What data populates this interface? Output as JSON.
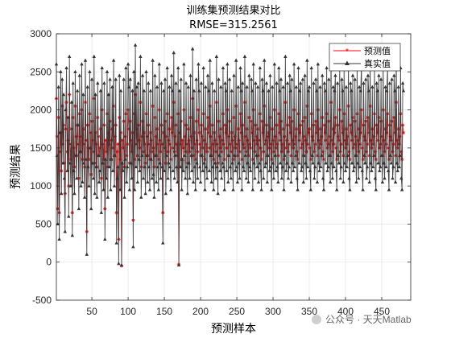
{
  "chart_data": {
    "type": "line",
    "title": "训练集预测结果对比",
    "subtitle": "RMSE=315.2561",
    "xlabel": "预测样本",
    "ylabel": "预测结果",
    "xlim": [
      1,
      490
    ],
    "ylim": [
      -500,
      3000
    ],
    "xticks": [
      50,
      100,
      150,
      200,
      250,
      300,
      350,
      400,
      450
    ],
    "yticks": [
      -500,
      0,
      500,
      1000,
      1500,
      2000,
      2500,
      3000
    ],
    "grid": true,
    "legend_position": "top-right",
    "series": [
      {
        "name": "预测值",
        "color": "#ff0000",
        "marker": "star",
        "x_start": 1,
        "values": [
          2150,
          1650,
          700,
          1900,
          650,
          1450,
          1700,
          1200,
          2050,
          1550,
          1800,
          1300,
          900,
          1750,
          2100,
          1450,
          1600,
          1000,
          2200,
          1550,
          1350,
          1750,
          650,
          1900,
          1500,
          1250,
          2050,
          1650,
          1400,
          1800,
          1550,
          1100,
          1950,
          1650,
          1450,
          2000,
          1350,
          1750,
          1550,
          1250,
          2100,
          1600,
          400,
          1800,
          1500,
          1350,
          1950,
          1700,
          1150,
          1850,
          1600,
          1450,
          2150,
          1300,
          1700,
          1550,
          1250,
          1900,
          1650,
          1400,
          1500,
          1750,
          1100,
          2000,
          1550,
          1350,
          1800,
          700,
          1600,
          1450,
          1950,
          1250,
          1700,
          1550,
          1850,
          1350,
          1600,
          1750,
          1500,
          2050,
          1400,
          1650,
          1800,
          650,
          1450,
          1550,
          300,
          1900,
          1350,
          1700,
          -50,
          1600,
          1500,
          1850,
          1250,
          1650,
          1950,
          1400,
          1550,
          2000,
          1750,
          1300,
          1850,
          1600,
          1450,
          1700,
          550,
          1950,
          1350,
          2200,
          1550,
          1750,
          1400,
          1800,
          1600,
          1500,
          2100,
          1250,
          1650,
          1850,
          1450,
          1700,
          1550,
          1300,
          1950,
          1650,
          1400,
          1800,
          1550,
          1350,
          1700,
          1600,
          1450,
          2050,
          1500,
          1250,
          1900,
          1650,
          1400,
          1750,
          1550,
          1350,
          2000,
          1600,
          1450,
          1800,
          1550,
          650,
          1700,
          1500,
          1850,
          1300,
          1650,
          1950,
          1450,
          1600,
          1750,
          1550,
          1350,
          1900,
          1700,
          1500,
          2100,
          1450,
          1650,
          1800,
          1550,
          1400,
          1950,
          -30,
          1700,
          1550,
          1850,
          1350,
          1600,
          1500,
          2000,
          1650,
          1450,
          1800,
          1550,
          1300,
          1750,
          1600,
          1450,
          1900,
          1650,
          1500,
          2150,
          1400,
          1700,
          1550,
          1350,
          1850,
          1600,
          1450,
          2000,
          1700,
          1550,
          1400,
          1800,
          1650,
          1500,
          1950,
          1600,
          1350,
          1750,
          1550,
          1450,
          1900,
          1700,
          1500,
          2050,
          1650,
          1400,
          1800,
          1550,
          1350,
          1700,
          1600,
          1450,
          2100,
          1550,
          1300,
          1850,
          1650,
          1500,
          1750,
          1450,
          1600,
          1950,
          1550,
          1350,
          1800,
          1700,
          1500,
          2000,
          1400,
          1650,
          1850,
          1550,
          1450,
          1700,
          1600,
          1350,
          1900,
          1650,
          1500,
          2050,
          1550,
          1400,
          1750,
          1600,
          1450,
          1950,
          1700,
          1350,
          1800,
          1550,
          1500,
          2100,
          1650,
          1450,
          1750,
          1600,
          1400,
          1900,
          1550,
          1500,
          1850,
          1700,
          1350,
          2000,
          1600,
          1450,
          1800,
          1650,
          1550,
          1750,
          1400,
          1600,
          1950,
          1500,
          1350,
          1850,
          1700,
          1450,
          2050,
          1550,
          1600,
          1800,
          1400,
          1650,
          1700,
          1500,
          1900,
          1550,
          1350,
          1750,
          1600,
          1450,
          2000,
          1650,
          1500,
          1800,
          1550,
          1400,
          1950,
          1700,
          1600,
          1850,
          1450,
          1550,
          1750,
          1350,
          1650,
          2100,
          1500,
          1600,
          1800,
          1450,
          1550,
          1900,
          1700,
          1400,
          1850,
          1600,
          1500,
          2000,
          1550,
          1650,
          1750,
          1450,
          1350,
          1950,
          1600,
          1700,
          1800,
          1500,
          1550,
          1850,
          1400,
          1650,
          1900,
          1600,
          1450,
          2050,
          1550,
          1700,
          1750,
          1500,
          1350,
          1950,
          1650,
          1600,
          1800,
          1450,
          1550,
          1850,
          1700,
          1400,
          2000,
          1600,
          1500,
          1750,
          1550,
          1650,
          1900,
          1450,
          1350,
          1800,
          1700,
          1600,
          1950,
          1500,
          1550,
          1850,
          1650,
          1400,
          2100,
          1600,
          1450,
          1750,
          1550,
          1700,
          1900,
          1500,
          1350,
          1800,
          1650,
          1600,
          2000,
          1450,
          1550,
          1850,
          1700,
          1400,
          1950,
          1600,
          1500,
          1750,
          1550,
          1650,
          2050,
          1450,
          1350,
          1800,
          1700,
          1600,
          1900,
          1500,
          1550,
          1850,
          1650,
          1400,
          1950,
          1600,
          1450,
          1750,
          1550,
          1700,
          2000,
          1500,
          1350,
          1800,
          1650,
          1600,
          1850,
          1450,
          1550,
          1900,
          1700,
          1400,
          2050,
          1600,
          1500,
          1750,
          1550,
          1650,
          1950,
          1450,
          1350,
          1800,
          1700,
          1600,
          1900,
          1500,
          1550,
          1850,
          1650,
          1400,
          2000,
          1600,
          1450,
          1750,
          1550,
          1700,
          1950,
          1500,
          1350,
          1800,
          1650,
          1600,
          1850,
          1450,
          1550,
          1900,
          1700,
          1400,
          2100,
          1600,
          1500,
          1750,
          1550,
          1650,
          1950,
          1450,
          1350,
          1800,
          1700
        ]
      },
      {
        "name": "真实值",
        "color": "#333333",
        "marker": "triangle",
        "x_start": 1,
        "values": [
          2600,
          1400,
          500,
          2300,
          300,
          1700,
          2500,
          900,
          2400,
          1300,
          2200,
          1100,
          400,
          2000,
          2550,
          1200,
          1900,
          600,
          2700,
          1300,
          1000,
          2100,
          350,
          2350,
          1200,
          900,
          2500,
          1400,
          1100,
          2250,
          1800,
          700,
          2450,
          1450,
          1000,
          2600,
          1050,
          2200,
          1300,
          850,
          2650,
          1350,
          100,
          2300,
          1250,
          1000,
          2500,
          1500,
          700,
          2400,
          1300,
          1100,
          2700,
          900,
          2200,
          1250,
          850,
          2350,
          1400,
          1050,
          1200,
          2250,
          650,
          2550,
          1300,
          950,
          2350,
          300,
          1350,
          1100,
          2500,
          850,
          2200,
          1250,
          2400,
          950,
          1350,
          2300,
          1200,
          2650,
          1000,
          1400,
          2400,
          250,
          1100,
          1250,
          -20,
          2450,
          950,
          2250,
          -40,
          1300,
          1200,
          2400,
          850,
          1350,
          2550,
          1050,
          1250,
          2600,
          2300,
          950,
          2400,
          1300,
          1100,
          2250,
          200,
          2500,
          950,
          2850,
          1250,
          2300,
          1050,
          2350,
          1350,
          1200,
          2700,
          850,
          1400,
          2450,
          1100,
          2250,
          1250,
          900,
          2500,
          1400,
          1050,
          2350,
          1250,
          950,
          2250,
          1350,
          1100,
          2650,
          1150,
          850,
          2450,
          1400,
          1050,
          2300,
          1250,
          950,
          2600,
          1300,
          1100,
          2350,
          1250,
          250,
          2250,
          1200,
          2400,
          900,
          1400,
          2550,
          1100,
          1300,
          2300,
          1250,
          950,
          2450,
          2250,
          1200,
          2750,
          1100,
          1400,
          2350,
          1250,
          1050,
          2550,
          -40,
          2250,
          1250,
          2400,
          950,
          1350,
          1200,
          2600,
          1400,
          1100,
          2350,
          1250,
          900,
          2300,
          1300,
          1100,
          2450,
          1400,
          1200,
          2800,
          1050,
          2250,
          1250,
          950,
          2400,
          1300,
          1100,
          2600,
          2250,
          1250,
          1050,
          2350,
          1400,
          1200,
          2550,
          1300,
          950,
          2300,
          1250,
          1100,
          2450,
          2250,
          1200,
          2650,
          1400,
          1050,
          2350,
          1250,
          950,
          2250,
          1300,
          1100,
          2700,
          1250,
          900,
          2400,
          1400,
          1200,
          2300,
          1100,
          1300,
          2550,
          1250,
          950,
          2350,
          2250,
          1200,
          2600,
          1050,
          1400,
          2400,
          1250,
          1100,
          2250,
          1300,
          950,
          2450,
          1400,
          1200,
          2650,
          1250,
          1050,
          2300,
          1300,
          1100,
          2550,
          2250,
          950,
          2350,
          1250,
          1200,
          2700,
          1400,
          1100,
          2300,
          1300,
          1050,
          2450,
          1250,
          1200,
          2400,
          2250,
          950,
          2600,
          1300,
          1100,
          2350,
          1400,
          1250,
          2300,
          1050,
          1300,
          2550,
          1200,
          950,
          2400,
          2250,
          1100,
          2650,
          1250,
          1300,
          2350,
          1050,
          1400,
          2250,
          1200,
          2450,
          1250,
          950,
          2300,
          1300,
          1100,
          2600,
          1400,
          1200,
          2350,
          1250,
          1050,
          2550,
          2250,
          1300,
          2400,
          1100,
          1250,
          2300,
          950,
          1400,
          2700,
          1200,
          1300,
          2350,
          1100,
          1250,
          2450,
          2250,
          1050,
          2400,
          1300,
          1200,
          2600,
          1250,
          1400,
          2300,
          1100,
          950,
          2550,
          1300,
          2250,
          2350,
          1200,
          1250,
          2400,
          1050,
          1400,
          2450,
          1300,
          1100,
          2650,
          1250,
          2250,
          2300,
          1200,
          950,
          2550,
          1400,
          1300,
          2350,
          1100,
          1250,
          2400,
          2250,
          1050,
          2600,
          1300,
          1200,
          2300,
          1250,
          1400,
          2450,
          1100,
          950,
          2350,
          2250,
          1300,
          2550,
          1200,
          1250,
          2400,
          1400,
          1050,
          2700,
          1300,
          1100,
          2300,
          1250,
          2250,
          2450,
          1200,
          950,
          2350,
          1400,
          1300,
          2600,
          1100,
          1250,
          2400,
          2250,
          1050,
          2550,
          1300,
          1200,
          2300,
          1250,
          1400,
          2650,
          1100,
          950,
          2350,
          2250,
          1300,
          2450,
          1200,
          1250,
          2400,
          1400,
          1050,
          2550,
          1300,
          1100,
          2300,
          1250,
          2250,
          2600,
          1200,
          950,
          2350,
          1400,
          1300,
          2400,
          1100,
          1250,
          2450,
          2250,
          1050,
          2650,
          1300,
          1200,
          2300,
          1250,
          1400,
          2550,
          1100,
          950,
          2350,
          2250,
          1300,
          2450,
          1200,
          1250,
          2400,
          1400,
          1050,
          2600,
          1300,
          1100,
          2300,
          1250,
          2250,
          2550,
          1200,
          950,
          2350,
          1400,
          1300,
          2400,
          1100,
          1250,
          2450,
          2250,
          1050,
          2700,
          1300,
          1200,
          2300,
          1250,
          1400,
          2550,
          1100,
          950,
          2350,
          2250
        ]
      }
    ]
  },
  "watermark": {
    "icon": "wechat-icon",
    "text": "公众号 · 天天Matlab"
  }
}
